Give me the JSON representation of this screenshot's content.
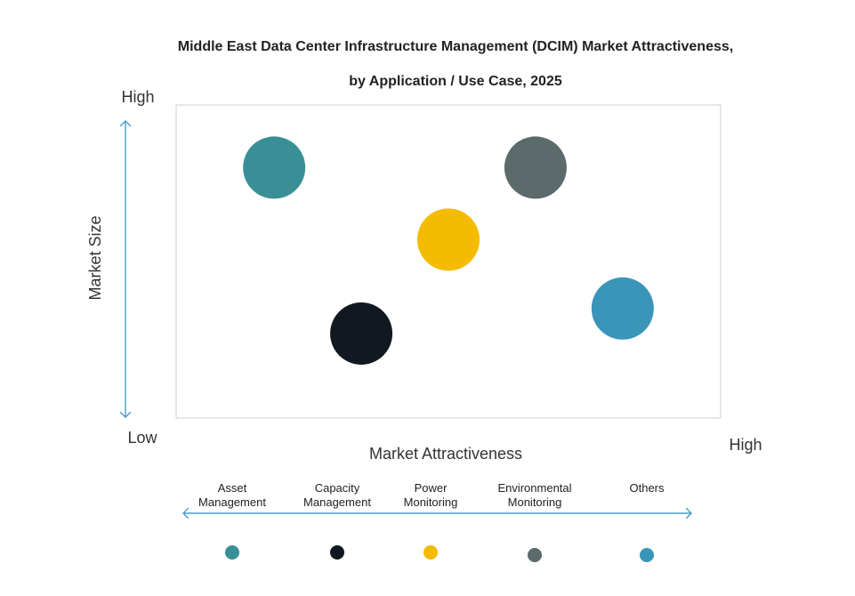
{
  "chart_data": {
    "type": "bubble",
    "title": [
      "Middle East Data Center Infrastructure  Management (DCIM) Market Attractiveness,",
      "by Application / Use Case, 2025"
    ],
    "x_label": "Market Attractiveness",
    "y_label": "Market Size",
    "y_high": "High",
    "y_low": "Low",
    "x_high": "High",
    "categories": [
      "Asset Management",
      "Capacity Management",
      "Power Monitoring",
      "Environmental Monitoring",
      "Others"
    ],
    "x": [
      18,
      34,
      50,
      66,
      82
    ],
    "y": [
      80,
      27,
      57,
      80,
      35
    ],
    "colors": [
      "#3a8f97",
      "#111820",
      "#f5bb00",
      "#5b6a6a",
      "#3a95b9"
    ],
    "xlim": [
      0,
      100
    ],
    "ylim": [
      0,
      100
    ]
  }
}
